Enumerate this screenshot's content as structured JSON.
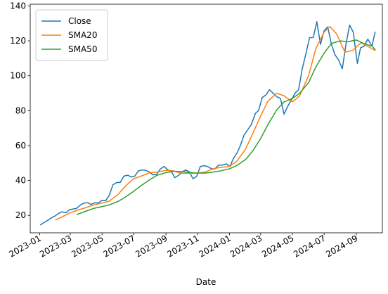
{
  "chart_data": {
    "type": "line",
    "title": "",
    "xlabel": "Date",
    "ylabel": "",
    "x_range": [
      "2022-12-14",
      "2024-10-21"
    ],
    "ylim": [
      10,
      141
    ],
    "yticks": [
      20,
      40,
      60,
      80,
      100,
      120,
      140
    ],
    "xticks": [
      "2023-01",
      "2023-03",
      "2023-05",
      "2023-07",
      "2023-09",
      "2023-11",
      "2024-01",
      "2024-03",
      "2024-05",
      "2024-07",
      "2024-09"
    ],
    "grid": false,
    "legend": "upper-left",
    "series": [
      {
        "name": "Close",
        "color": "#1f77b4",
        "points": [
          [
            "2023-01-03",
            14.6
          ],
          [
            "2023-01-09",
            15.8
          ],
          [
            "2023-01-17",
            17.2
          ],
          [
            "2023-01-23",
            18.5
          ],
          [
            "2023-01-30",
            19.5
          ],
          [
            "2023-02-06",
            21.0
          ],
          [
            "2023-02-13",
            22.0
          ],
          [
            "2023-02-21",
            21.5
          ],
          [
            "2023-02-27",
            23.2
          ],
          [
            "2023-03-06",
            23.6
          ],
          [
            "2023-03-13",
            24.0
          ],
          [
            "2023-03-20",
            25.8
          ],
          [
            "2023-03-27",
            27.0
          ],
          [
            "2023-04-03",
            27.3
          ],
          [
            "2023-04-10",
            26.3
          ],
          [
            "2023-04-17",
            27.2
          ],
          [
            "2023-04-24",
            27.1
          ],
          [
            "2023-05-01",
            28.6
          ],
          [
            "2023-05-08",
            28.4
          ],
          [
            "2023-05-15",
            31.5
          ],
          [
            "2023-05-22",
            37.5
          ],
          [
            "2023-05-30",
            38.9
          ],
          [
            "2023-06-05",
            38.8
          ],
          [
            "2023-06-12",
            42.5
          ],
          [
            "2023-06-20",
            43.0
          ],
          [
            "2023-06-26",
            42.0
          ],
          [
            "2023-07-03",
            42.5
          ],
          [
            "2023-07-10",
            45.5
          ],
          [
            "2023-07-17",
            46.0
          ],
          [
            "2023-07-24",
            45.8
          ],
          [
            "2023-07-31",
            44.8
          ],
          [
            "2023-08-07",
            43.2
          ],
          [
            "2023-08-14",
            43.5
          ],
          [
            "2023-08-21",
            46.5
          ],
          [
            "2023-08-28",
            48.0
          ],
          [
            "2023-09-05",
            46.0
          ],
          [
            "2023-09-11",
            45.3
          ],
          [
            "2023-09-18",
            41.6
          ],
          [
            "2023-09-25",
            42.9
          ],
          [
            "2023-10-02",
            44.9
          ],
          [
            "2023-10-09",
            46.0
          ],
          [
            "2023-10-16",
            44.9
          ],
          [
            "2023-10-23",
            41.0
          ],
          [
            "2023-10-30",
            42.4
          ],
          [
            "2023-11-06",
            48.0
          ],
          [
            "2023-11-13",
            48.5
          ],
          [
            "2023-11-20",
            48.0
          ],
          [
            "2023-11-27",
            46.8
          ],
          [
            "2023-12-04",
            46.6
          ],
          [
            "2023-12-11",
            48.8
          ],
          [
            "2023-12-18",
            48.8
          ],
          [
            "2023-12-26",
            49.5
          ],
          [
            "2024-01-02",
            48.1
          ],
          [
            "2024-01-08",
            52.2
          ],
          [
            "2024-01-16",
            56.0
          ],
          [
            "2024-01-22",
            60.0
          ],
          [
            "2024-01-29",
            66.0
          ],
          [
            "2024-02-05",
            69.0
          ],
          [
            "2024-02-12",
            72.0
          ],
          [
            "2024-02-20",
            78.5
          ],
          [
            "2024-02-26",
            80.0
          ],
          [
            "2024-03-04",
            87.5
          ],
          [
            "2024-03-11",
            89.0
          ],
          [
            "2024-03-18",
            92.0
          ],
          [
            "2024-03-25",
            90.0
          ],
          [
            "2024-04-01",
            88.0
          ],
          [
            "2024-04-08",
            87.0
          ],
          [
            "2024-04-15",
            78.0
          ],
          [
            "2024-04-22",
            82.5
          ],
          [
            "2024-04-29",
            86.0
          ],
          [
            "2024-05-06",
            90.0
          ],
          [
            "2024-05-13",
            92.0
          ],
          [
            "2024-05-20",
            104.0
          ],
          [
            "2024-05-28",
            113.9
          ],
          [
            "2024-06-03",
            121.8
          ],
          [
            "2024-06-10",
            121.9
          ],
          [
            "2024-06-17",
            131.0
          ],
          [
            "2024-06-24",
            118.0
          ],
          [
            "2024-07-01",
            125.8
          ],
          [
            "2024-07-08",
            128.0
          ],
          [
            "2024-07-15",
            118.0
          ],
          [
            "2024-07-22",
            112.0
          ],
          [
            "2024-07-29",
            109.0
          ],
          [
            "2024-08-05",
            104.0
          ],
          [
            "2024-08-12",
            118.0
          ],
          [
            "2024-08-19",
            129.0
          ],
          [
            "2024-08-26",
            125.0
          ],
          [
            "2024-09-03",
            107.0
          ],
          [
            "2024-09-09",
            116.0
          ],
          [
            "2024-09-16",
            117.0
          ],
          [
            "2024-09-23",
            121.0
          ],
          [
            "2024-10-01",
            117.0
          ],
          [
            "2024-10-07",
            125.0
          ]
        ]
      },
      {
        "name": "SMA20",
        "color": "#ff7f0e",
        "points": [
          [
            "2023-02-01",
            17.5
          ],
          [
            "2023-02-15",
            19.4
          ],
          [
            "2023-03-01",
            21.5
          ],
          [
            "2023-03-15",
            23.0
          ],
          [
            "2023-04-01",
            24.5
          ],
          [
            "2023-04-15",
            26.0
          ],
          [
            "2023-05-01",
            27.0
          ],
          [
            "2023-05-15",
            28.2
          ],
          [
            "2023-06-01",
            32.0
          ],
          [
            "2023-06-15",
            36.8
          ],
          [
            "2023-07-01",
            41.0
          ],
          [
            "2023-07-15",
            42.5
          ],
          [
            "2023-08-01",
            44.5
          ],
          [
            "2023-08-15",
            44.8
          ],
          [
            "2023-09-01",
            45.8
          ],
          [
            "2023-09-15",
            45.5
          ],
          [
            "2023-10-01",
            44.0
          ],
          [
            "2023-10-15",
            44.1
          ],
          [
            "2023-11-01",
            44.2
          ],
          [
            "2023-11-15",
            44.8
          ],
          [
            "2023-12-01",
            46.8
          ],
          [
            "2023-12-15",
            47.5
          ],
          [
            "2024-01-01",
            48.0
          ],
          [
            "2024-01-15",
            51.0
          ],
          [
            "2024-02-01",
            58.0
          ],
          [
            "2024-02-15",
            67.0
          ],
          [
            "2024-03-01",
            77.0
          ],
          [
            "2024-03-15",
            85.5
          ],
          [
            "2024-04-01",
            90.0
          ],
          [
            "2024-04-15",
            88.5
          ],
          [
            "2024-05-01",
            85.0
          ],
          [
            "2024-05-15",
            88.5
          ],
          [
            "2024-06-01",
            100.0
          ],
          [
            "2024-06-15",
            115.5
          ],
          [
            "2024-07-01",
            125.0
          ],
          [
            "2024-07-12",
            128.2
          ],
          [
            "2024-07-25",
            124.0
          ],
          [
            "2024-08-10",
            113.5
          ],
          [
            "2024-08-25",
            114.5
          ],
          [
            "2024-09-10",
            119.0
          ],
          [
            "2024-09-25",
            116.5
          ],
          [
            "2024-10-07",
            114.5
          ]
        ]
      },
      {
        "name": "SMA50",
        "color": "#2ca02c",
        "points": [
          [
            "2023-03-14",
            20.5
          ],
          [
            "2023-04-01",
            22.5
          ],
          [
            "2023-04-15",
            24.0
          ],
          [
            "2023-05-01",
            25.0
          ],
          [
            "2023-05-15",
            26.0
          ],
          [
            "2023-06-01",
            28.0
          ],
          [
            "2023-06-15",
            30.5
          ],
          [
            "2023-07-01",
            33.8
          ],
          [
            "2023-07-15",
            37.0
          ],
          [
            "2023-08-01",
            40.5
          ],
          [
            "2023-08-15",
            43.0
          ],
          [
            "2023-09-01",
            44.5
          ],
          [
            "2023-09-15",
            45.3
          ],
          [
            "2023-10-01",
            45.0
          ],
          [
            "2023-10-15",
            44.5
          ],
          [
            "2023-11-01",
            44.2
          ],
          [
            "2023-11-15",
            44.2
          ],
          [
            "2023-12-01",
            44.8
          ],
          [
            "2023-12-15",
            45.5
          ],
          [
            "2024-01-01",
            46.7
          ],
          [
            "2024-01-15",
            48.5
          ],
          [
            "2024-02-01",
            52.0
          ],
          [
            "2024-02-15",
            57.0
          ],
          [
            "2024-03-01",
            64.0
          ],
          [
            "2024-03-15",
            72.0
          ],
          [
            "2024-04-01",
            80.5
          ],
          [
            "2024-04-15",
            85.0
          ],
          [
            "2024-05-01",
            87.0
          ],
          [
            "2024-05-15",
            90.0
          ],
          [
            "2024-06-01",
            96.0
          ],
          [
            "2024-06-15",
            105.0
          ],
          [
            "2024-07-01",
            113.0
          ],
          [
            "2024-07-15",
            118.5
          ],
          [
            "2024-08-01",
            120.0
          ],
          [
            "2024-08-15",
            119.5
          ],
          [
            "2024-09-01",
            120.5
          ],
          [
            "2024-09-15",
            118.5
          ],
          [
            "2024-10-01",
            117.0
          ],
          [
            "2024-10-07",
            115.0
          ]
        ]
      }
    ]
  }
}
